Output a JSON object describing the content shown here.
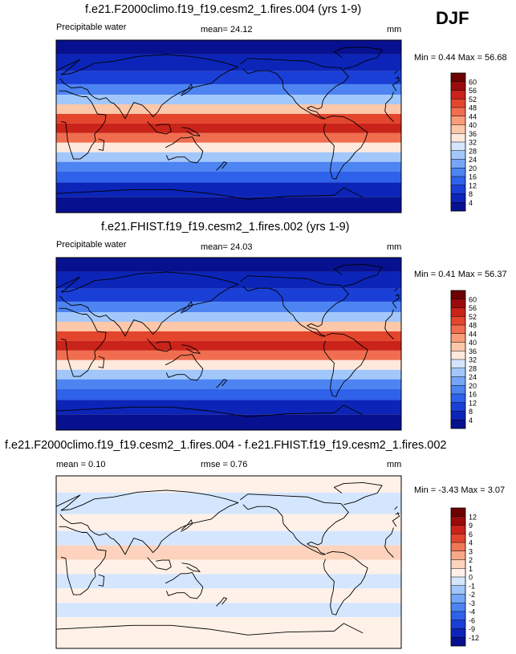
{
  "season": "DJF",
  "units": "mm",
  "panels": [
    {
      "title": "f.e21.F2000climo.f19_f19.cesm2_1.fires.004 (yrs 1-9)",
      "variable": "Precipitable water",
      "stat1": "mean=  24.12",
      "stat2": "",
      "units": "mm",
      "minmax": "Min =   0.44 Max =  56.68"
    },
    {
      "title": "f.e21.FHIST.f19_f19.cesm2_1.fires.002 (yrs 1-9)",
      "variable": "Precipitable water",
      "stat1": "mean=  24.03",
      "stat2": "",
      "units": "mm",
      "minmax": "Min =   0.41 Max =  56.37"
    },
    {
      "title": "f.e21.F2000climo.f19_f19.cesm2_1.fires.004 - f.e21.FHIST.f19_f19.cesm2_1.fires.002",
      "variable": "",
      "stat1": "mean =   0.10",
      "stat2": "rmse =   0.76",
      "units": "mm",
      "minmax": "Min =  -3.43 Max =   3.07"
    }
  ],
  "chart_data": [
    {
      "type": "heatmap",
      "title": "f.e21.F2000climo.f19_f19.cesm2_1.fires.004 (yrs 1-9)",
      "variable": "Precipitable water",
      "mean": 24.12,
      "min": 0.44,
      "max": 56.68,
      "levels": [
        4,
        8,
        12,
        16,
        20,
        24,
        28,
        32,
        36,
        40,
        44,
        48,
        52,
        56,
        60
      ],
      "level_labels": [
        "4",
        "8",
        "12",
        "16",
        "20",
        "24",
        "28",
        "32",
        "36",
        "40",
        "44",
        "48",
        "52",
        "56",
        "60"
      ],
      "colors": [
        "#07118f",
        "#0c25b8",
        "#1a3fd6",
        "#2f62ea",
        "#4d84f2",
        "#75a6f7",
        "#a2c7fb",
        "#d4e6fe",
        "#ffe9dc",
        "#fdc7a9",
        "#f99c7a",
        "#f06e4f",
        "#e3452d",
        "#c9231a",
        "#9a0b0b",
        "#6d0101"
      ],
      "bands": [
        {
          "lat": 85,
          "value": 2
        },
        {
          "lat": 65,
          "value": 6
        },
        {
          "lat": 50,
          "value": 11
        },
        {
          "lat": 38,
          "value": 18
        },
        {
          "lat": 28,
          "value": 27
        },
        {
          "lat": 18,
          "value": 37
        },
        {
          "lat": 8,
          "value": 48
        },
        {
          "lat": -2,
          "value": 52
        },
        {
          "lat": -12,
          "value": 44
        },
        {
          "lat": -22,
          "value": 33
        },
        {
          "lat": -32,
          "value": 24
        },
        {
          "lat": -42,
          "value": 17
        },
        {
          "lat": -52,
          "value": 12
        },
        {
          "lat": -65,
          "value": 6
        },
        {
          "lat": -82,
          "value": 2
        }
      ]
    },
    {
      "type": "heatmap",
      "title": "f.e21.FHIST.f19_f19.cesm2_1.fires.002 (yrs 1-9)",
      "variable": "Precipitable water",
      "mean": 24.03,
      "min": 0.41,
      "max": 56.37,
      "levels": [
        4,
        8,
        12,
        16,
        20,
        24,
        28,
        32,
        36,
        40,
        44,
        48,
        52,
        56,
        60
      ],
      "level_labels": [
        "4",
        "8",
        "12",
        "16",
        "20",
        "24",
        "28",
        "32",
        "36",
        "40",
        "44",
        "48",
        "52",
        "56",
        "60"
      ],
      "colors": [
        "#07118f",
        "#0c25b8",
        "#1a3fd6",
        "#2f62ea",
        "#4d84f2",
        "#75a6f7",
        "#a2c7fb",
        "#d4e6fe",
        "#ffe9dc",
        "#fdc7a9",
        "#f99c7a",
        "#f06e4f",
        "#e3452d",
        "#c9231a",
        "#9a0b0b",
        "#6d0101"
      ],
      "bands": [
        {
          "lat": 85,
          "value": 2
        },
        {
          "lat": 65,
          "value": 6
        },
        {
          "lat": 50,
          "value": 11
        },
        {
          "lat": 38,
          "value": 18
        },
        {
          "lat": 28,
          "value": 27
        },
        {
          "lat": 18,
          "value": 37
        },
        {
          "lat": 8,
          "value": 48
        },
        {
          "lat": -2,
          "value": 52
        },
        {
          "lat": -12,
          "value": 44
        },
        {
          "lat": -22,
          "value": 33
        },
        {
          "lat": -32,
          "value": 24
        },
        {
          "lat": -42,
          "value": 17
        },
        {
          "lat": -52,
          "value": 12
        },
        {
          "lat": -65,
          "value": 6
        },
        {
          "lat": -82,
          "value": 2
        }
      ]
    },
    {
      "type": "heatmap",
      "title": "f.e21.F2000climo.f19_f19.cesm2_1.fires.004 - f.e21.FHIST.f19_f19.cesm2_1.fires.002",
      "mean": 0.1,
      "rmse": 0.76,
      "min": -3.43,
      "max": 3.07,
      "levels": [
        -12,
        -9,
        -6,
        -4,
        -3,
        -2,
        -1,
        0,
        1,
        2,
        3,
        4,
        6,
        9,
        12
      ],
      "level_labels": [
        "-12",
        "-9",
        "-6",
        "-4",
        "-3",
        "-2",
        "-1",
        "0",
        "1",
        "2",
        "3",
        "4",
        "6",
        "9",
        "12"
      ],
      "colors": [
        "#07118f",
        "#0c25b8",
        "#1a3fd6",
        "#2f62ea",
        "#4d84f2",
        "#75a6f7",
        "#a2c7fb",
        "#d4e6fe",
        "#fff1e8",
        "#fdd3bd",
        "#f9a887",
        "#f07755",
        "#e3452d",
        "#c9231a",
        "#9a0b0b",
        "#6d0101"
      ],
      "bands": [
        {
          "lat": 85,
          "value": 0.3
        },
        {
          "lat": 60,
          "value": -0.5
        },
        {
          "lat": 40,
          "value": 0.4
        },
        {
          "lat": 25,
          "value": -0.3
        },
        {
          "lat": 10,
          "value": 1.2
        },
        {
          "lat": -5,
          "value": 0.5
        },
        {
          "lat": -20,
          "value": -0.4
        },
        {
          "lat": -35,
          "value": 0.5
        },
        {
          "lat": -50,
          "value": -0.6
        },
        {
          "lat": -65,
          "value": 0.3
        },
        {
          "lat": -85,
          "value": 0.2
        }
      ]
    }
  ]
}
